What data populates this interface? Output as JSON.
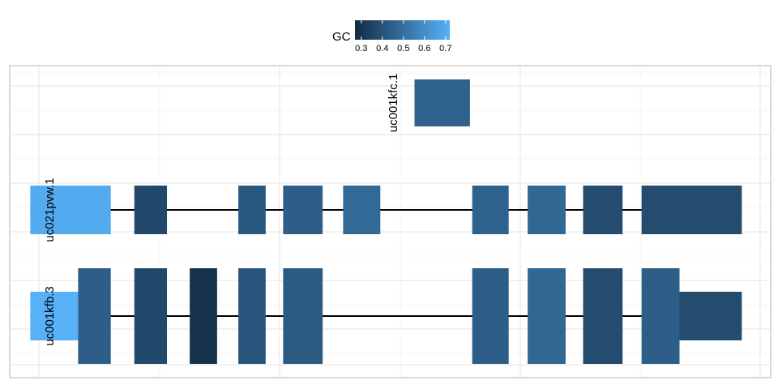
{
  "chart_data": {
    "type": "gene_model",
    "x_range": [
      0,
      100
    ],
    "grid": true,
    "legend": {
      "title": "GC",
      "position": "top",
      "range": [
        0.27,
        0.72
      ],
      "ticks": [
        "0.3",
        "0.4",
        "0.5",
        "0.6",
        "0.7"
      ],
      "tick_values": [
        0.3,
        0.4,
        0.5,
        0.6,
        0.7
      ],
      "colors": {
        "low": "#132B43",
        "high": "#56B1F7"
      }
    },
    "tracks": [
      {
        "name": "uc001kfc.1",
        "has_line": false,
        "exons": [
          {
            "start": 53.2,
            "end": 60.5,
            "gc": 0.45,
            "type": "coding"
          }
        ]
      },
      {
        "name": "uc021pvw.1",
        "has_line": true,
        "line": [
          2.6,
          96.3
        ],
        "exons": [
          {
            "start": 2.6,
            "end": 13.2,
            "gc": 0.7,
            "type": "coding"
          },
          {
            "start": 16.3,
            "end": 20.6,
            "gc": 0.37,
            "type": "coding"
          },
          {
            "start": 30.0,
            "end": 33.6,
            "gc": 0.42,
            "type": "coding"
          },
          {
            "start": 35.9,
            "end": 41.1,
            "gc": 0.44,
            "type": "coding"
          },
          {
            "start": 43.8,
            "end": 48.7,
            "gc": 0.48,
            "type": "coding"
          },
          {
            "start": 60.8,
            "end": 65.6,
            "gc": 0.45,
            "type": "coding"
          },
          {
            "start": 68.1,
            "end": 73.1,
            "gc": 0.47,
            "type": "coding"
          },
          {
            "start": 75.4,
            "end": 80.6,
            "gc": 0.38,
            "type": "coding"
          },
          {
            "start": 83.1,
            "end": 96.3,
            "gc": 0.38,
            "type": "coding"
          }
        ]
      },
      {
        "name": "uc001kfb.3",
        "has_line": true,
        "line": [
          2.6,
          96.3
        ],
        "exons": [
          {
            "start": 2.6,
            "end": 8.9,
            "gc": 0.72,
            "type": "utr"
          },
          {
            "start": 8.9,
            "end": 13.2,
            "gc": 0.44,
            "type": "coding"
          },
          {
            "start": 16.3,
            "end": 20.6,
            "gc": 0.37,
            "type": "coding"
          },
          {
            "start": 23.6,
            "end": 27.2,
            "gc": 0.29,
            "type": "coding"
          },
          {
            "start": 30.0,
            "end": 33.6,
            "gc": 0.41,
            "type": "coding"
          },
          {
            "start": 35.9,
            "end": 41.1,
            "gc": 0.43,
            "type": "coding"
          },
          {
            "start": 60.8,
            "end": 65.6,
            "gc": 0.44,
            "type": "coding"
          },
          {
            "start": 68.1,
            "end": 73.1,
            "gc": 0.47,
            "type": "coding"
          },
          {
            "start": 75.4,
            "end": 80.6,
            "gc": 0.38,
            "type": "coding"
          },
          {
            "start": 83.1,
            "end": 88.1,
            "gc": 0.44,
            "type": "coding"
          },
          {
            "start": 88.1,
            "end": 96.3,
            "gc": 0.38,
            "type": "utr"
          }
        ]
      }
    ]
  }
}
